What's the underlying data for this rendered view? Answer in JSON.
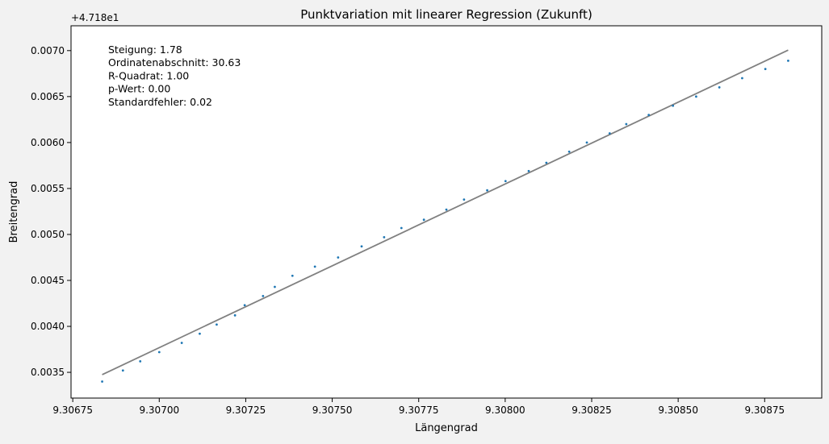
{
  "chart_data": {
    "type": "scatter",
    "title": "Punktvariation mit linearer Regression (Zukunft)",
    "xlabel": "Längengrad",
    "ylabel": "Breitengrad",
    "y_offset_label": "+4.718e1",
    "xlim": [
      9.306745,
      9.308915
    ],
    "ylim": [
      0.00322,
      0.00727
    ],
    "x_ticks": [
      {
        "value": 9.30675,
        "label": "9.30675"
      },
      {
        "value": 9.307,
        "label": "9.30700"
      },
      {
        "value": 9.30725,
        "label": "9.30725"
      },
      {
        "value": 9.3075,
        "label": "9.30750"
      },
      {
        "value": 9.30775,
        "label": "9.30775"
      },
      {
        "value": 9.308,
        "label": "9.30800"
      },
      {
        "value": 9.30825,
        "label": "9.30825"
      },
      {
        "value": 9.3085,
        "label": "9.30850"
      },
      {
        "value": 9.30875,
        "label": "9.30875"
      }
    ],
    "y_ticks": [
      {
        "value": 0.0035,
        "label": "0.0035"
      },
      {
        "value": 0.004,
        "label": "0.0040"
      },
      {
        "value": 0.0045,
        "label": "0.0045"
      },
      {
        "value": 0.005,
        "label": "0.0050"
      },
      {
        "value": 0.0055,
        "label": "0.0055"
      },
      {
        "value": 0.006,
        "label": "0.0060"
      },
      {
        "value": 0.0065,
        "label": "0.0065"
      },
      {
        "value": 0.007,
        "label": "0.0070"
      }
    ],
    "annotations": [
      "Steigung: 1.78",
      "Ordinatenabschnitt: 30.63",
      "R-Quadrat: 1.00",
      "p-Wert: 0.00",
      "Standardfehler: 0.02"
    ],
    "grid": false,
    "colors": {
      "points": "#1f77b4",
      "regression": "#808080",
      "axes": "#000000",
      "figure_bg": "#f2f2f2",
      "plot_bg": "#ffffff"
    },
    "series": [
      {
        "kind": "points",
        "x": [
          9.306835,
          9.306895,
          9.306945,
          9.307,
          9.307065,
          9.307117,
          9.307166,
          9.307219,
          9.307247,
          9.3073,
          9.307334,
          9.307385,
          9.30745,
          9.307517,
          9.307585,
          9.30765,
          9.3077,
          9.307765,
          9.30783,
          9.307881,
          9.307948,
          9.308001,
          9.308068,
          9.308119,
          9.308185,
          9.308236,
          9.308302,
          9.30835,
          9.308415,
          9.308485,
          9.308552,
          9.308619,
          9.308685,
          9.308752,
          9.308818
        ],
        "y": [
          0.0034,
          0.00352,
          0.00362,
          0.00372,
          0.00382,
          0.00392,
          0.00402,
          0.00412,
          0.00423,
          0.00433,
          0.00443,
          0.00455,
          0.00465,
          0.00475,
          0.00487,
          0.00497,
          0.00507,
          0.00516,
          0.00527,
          0.00538,
          0.00548,
          0.00558,
          0.00569,
          0.00578,
          0.0059,
          0.006,
          0.0061,
          0.0062,
          0.0063,
          0.0064,
          0.0065,
          0.0066,
          0.0067,
          0.0068,
          0.00689
        ]
      },
      {
        "kind": "regression_line",
        "x": [
          9.306835,
          9.308818
        ],
        "y": [
          0.003475,
          0.007005
        ]
      }
    ]
  }
}
